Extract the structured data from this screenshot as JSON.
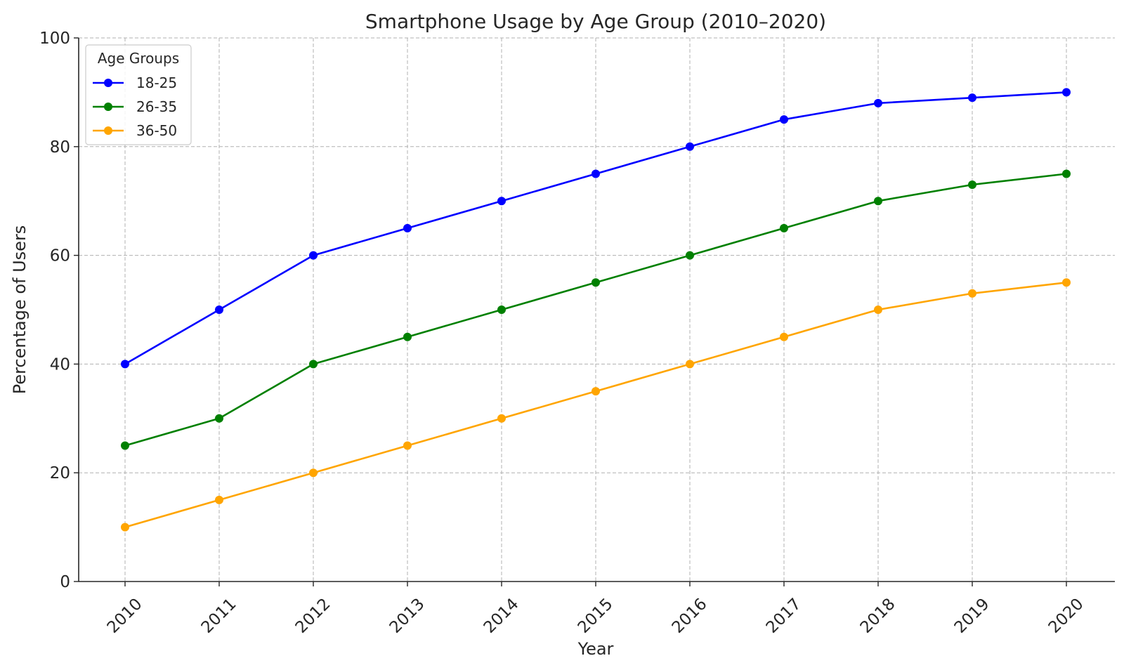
{
  "chart_data": {
    "type": "line",
    "title": "Smartphone Usage by Age Group (2010–2020)",
    "xlabel": "Year",
    "ylabel": "Percentage of Users",
    "x": [
      "2010",
      "2011",
      "2012",
      "2013",
      "2014",
      "2015",
      "2016",
      "2017",
      "2018",
      "2019",
      "2020"
    ],
    "ylim": [
      0,
      100
    ],
    "yticks": [
      "0",
      "20",
      "40",
      "60",
      "80",
      "100"
    ],
    "grid": true,
    "legend": {
      "title": "Age Groups",
      "placement": "top-left"
    },
    "series": [
      {
        "name": "18-25",
        "color": "#0000ff",
        "values": [
          40,
          50,
          60,
          65,
          70,
          75,
          80,
          85,
          88,
          89,
          90
        ]
      },
      {
        "name": "26-35",
        "color": "#008000",
        "values": [
          25,
          30,
          40,
          45,
          50,
          55,
          60,
          65,
          70,
          73,
          75
        ]
      },
      {
        "name": "36-50",
        "color": "#ffa500",
        "values": [
          10,
          15,
          20,
          25,
          30,
          35,
          40,
          45,
          50,
          53,
          55
        ]
      }
    ]
  }
}
